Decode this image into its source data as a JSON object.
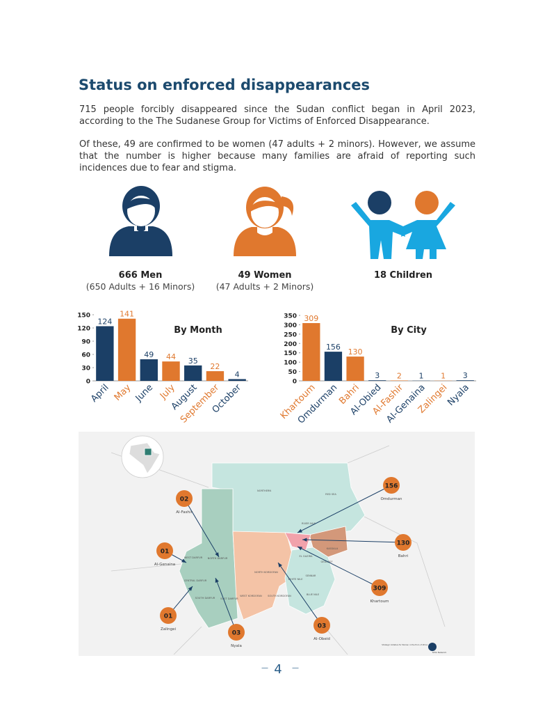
{
  "title": "Status on enforced disappearances",
  "paragraphs": [
    "715 people forcibly disappeared since the Sudan conflict began in April 2023, according to the The Sudanese Group for Victims of Enforced Disappearance.",
    "Of these, 49 are confirmed to be women (47 adults + 2 minors). However, we assume that the number is higher because many families are afraid of reporting such incidences due to fear and stigma."
  ],
  "stats": [
    {
      "label": "666 Men",
      "detail": "(650 Adults + 16 Minors)"
    },
    {
      "label": "49 Women",
      "detail": "(47 Adults + 2 Minors)"
    },
    {
      "label": "18 Children"
    }
  ],
  "chart_data": [
    {
      "type": "bar",
      "title": "By Month",
      "categories": [
        "April",
        "May",
        "June",
        "July",
        "August",
        "September",
        "October"
      ],
      "values": [
        124,
        141,
        49,
        44,
        35,
        22,
        4
      ],
      "colors": [
        "#1b3f66",
        "#e0782e",
        "#1b3f66",
        "#e0782e",
        "#1b3f66",
        "#e0782e",
        "#1b3f66"
      ],
      "ylim": [
        0,
        150
      ],
      "yticks": [
        0,
        30,
        60,
        90,
        120,
        150
      ]
    },
    {
      "type": "bar",
      "title": "By City",
      "categories": [
        "Khartoum",
        "Omdurman",
        "Bahri",
        "Al-Obied",
        "Al-Fashir",
        "Al-Genaina",
        "Zalingei",
        "Nyala"
      ],
      "values": [
        309,
        156,
        130,
        3,
        2,
        1,
        1,
        3
      ],
      "colors": [
        "#e0782e",
        "#1b3f66",
        "#e0782e",
        "#1b3f66",
        "#e0782e",
        "#1b3f66",
        "#e0782e",
        "#1b3f66"
      ],
      "ylim": [
        0,
        350
      ],
      "yticks": [
        0,
        50,
        100,
        150,
        200,
        250,
        300,
        350
      ]
    }
  ],
  "map": {
    "regions": [
      "NORTHERN",
      "RED SEA",
      "RIVER NILE",
      "KASSALA",
      "GEDAREF",
      "EL GAZIRA",
      "SENNAR",
      "WHITE NILE",
      "BLUE NILE",
      "NORTH KORDOFAN",
      "WEST KORDOFAN",
      "SOUTH KORDOFAN",
      "NORTH DARFUR",
      "WEST DARFUR",
      "CENTRAL DARFUR",
      "SOUTH DARFUR",
      "EAST DARFUR"
    ],
    "callouts": [
      {
        "value": "02",
        "label": "Al-Fashir"
      },
      {
        "value": "01",
        "label": "Al-Genaina"
      },
      {
        "value": "01",
        "label": "Zalingei"
      },
      {
        "value": "03",
        "label": "Nyala"
      },
      {
        "value": "03",
        "label": "Al-Obeid"
      },
      {
        "value": "309",
        "label": "Khartoum"
      },
      {
        "value": "130",
        "label": "Bahri"
      },
      {
        "value": "156",
        "label": "Omdurman"
      }
    ],
    "logo": [
      "Strategic Initiative for Women in the Horn of Africa",
      "SIHA Network"
    ]
  },
  "page_number": "4"
}
